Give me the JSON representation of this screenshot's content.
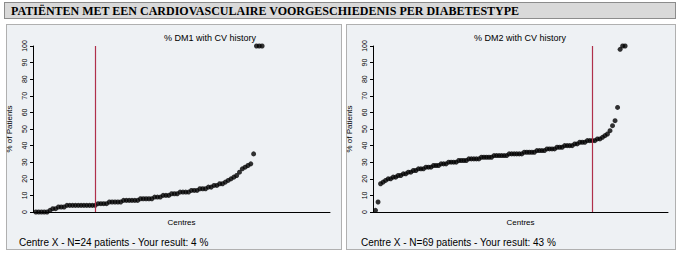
{
  "header": "PATIËNTEN MET EEN CARDIOVASCULAIRE VOORGESCHIEDENIS PER DIABETESTYPE",
  "chart_data": [
    {
      "type": "scatter",
      "title": "% DM1 with CV history",
      "x_label": "Centres",
      "y_label": "% of Patients",
      "caption": "Centre X - N=24 patients - Your result: 4 %",
      "x": [
        1,
        2,
        3,
        4,
        5,
        6,
        7,
        8,
        9,
        10,
        11,
        12,
        13,
        14,
        15,
        16,
        17,
        18,
        19,
        20,
        21,
        22,
        23,
        24,
        25,
        26,
        27,
        28,
        29,
        30,
        31,
        32,
        33,
        34,
        35,
        36,
        37,
        38,
        39,
        40,
        41,
        42,
        43,
        44,
        45,
        46,
        47,
        48,
        49,
        50,
        51,
        52,
        53,
        54,
        55,
        56,
        57,
        58,
        59,
        60,
        61,
        62,
        63,
        64,
        65,
        66,
        67,
        68,
        69,
        70,
        71,
        72,
        73,
        74,
        75,
        76,
        77,
        78,
        79,
        80,
        81
      ],
      "values": [
        0,
        0,
        0,
        0,
        0,
        1,
        2,
        2,
        3,
        3,
        3,
        4,
        4,
        4,
        4,
        4,
        4,
        4,
        4,
        4,
        4,
        4,
        5,
        5,
        5,
        5,
        6,
        6,
        6,
        6,
        6,
        7,
        7,
        7,
        7,
        7,
        7,
        8,
        8,
        8,
        8,
        8,
        9,
        9,
        9,
        10,
        10,
        10,
        11,
        11,
        11,
        12,
        12,
        12,
        12,
        13,
        13,
        13,
        14,
        14,
        14,
        15,
        15,
        16,
        16,
        17,
        17,
        18,
        19,
        20,
        21,
        22,
        24,
        26,
        27,
        28,
        29,
        35,
        100,
        100,
        100
      ],
      "reference_x": 22,
      "color": "#000000",
      "xlim": [
        0,
        105
      ],
      "ylim": [
        0,
        100
      ],
      "yticks": [
        0,
        10,
        20,
        30,
        40,
        50,
        60,
        70,
        80,
        90,
        100
      ],
      "tick_labels": "y",
      "grid": false,
      "marker": "circle"
    },
    {
      "type": "scatter",
      "title": "% DM2 with CV history",
      "x_label": "Centres",
      "y_label": "% of Patients",
      "caption": "Centre X - N=69 patients - Your result: 43 %",
      "x": [
        1,
        2,
        3,
        4,
        5,
        6,
        7,
        8,
        9,
        10,
        11,
        12,
        13,
        14,
        15,
        16,
        17,
        18,
        19,
        20,
        21,
        22,
        23,
        24,
        25,
        26,
        27,
        28,
        29,
        30,
        31,
        32,
        33,
        34,
        35,
        36,
        37,
        38,
        39,
        40,
        41,
        42,
        43,
        44,
        45,
        46,
        47,
        48,
        49,
        50,
        51,
        52,
        53,
        54,
        55,
        56,
        57,
        58,
        59,
        60,
        61,
        62,
        63,
        64,
        65,
        66,
        67,
        68,
        69,
        70,
        71,
        72,
        73,
        74,
        75,
        76,
        77,
        78,
        79,
        80,
        81,
        82,
        83,
        84,
        85,
        86,
        87,
        88,
        89,
        90,
        91,
        92,
        93,
        94,
        95,
        96,
        97,
        98,
        99,
        100
      ],
      "values": [
        1,
        6,
        17,
        18,
        19,
        20,
        20,
        21,
        21,
        22,
        22,
        23,
        23,
        24,
        24,
        25,
        25,
        26,
        26,
        26,
        27,
        27,
        27,
        28,
        28,
        28,
        29,
        29,
        29,
        30,
        30,
        30,
        30,
        31,
        31,
        31,
        31,
        32,
        32,
        32,
        32,
        32,
        33,
        33,
        33,
        33,
        33,
        34,
        34,
        34,
        34,
        34,
        34,
        35,
        35,
        35,
        35,
        35,
        35,
        36,
        36,
        36,
        36,
        36,
        37,
        37,
        37,
        37,
        38,
        38,
        38,
        38,
        39,
        39,
        39,
        40,
        40,
        40,
        40,
        41,
        41,
        42,
        42,
        42,
        43,
        43,
        43,
        43,
        44,
        44,
        45,
        46,
        47,
        49,
        52,
        55,
        63,
        98,
        100,
        100
      ],
      "reference_x": 87,
      "color": "#000000",
      "xlim": [
        0,
        117
      ],
      "ylim": [
        0,
        100
      ],
      "yticks": [
        0,
        10,
        20,
        30,
        40,
        50,
        60,
        70,
        80,
        90,
        100
      ],
      "tick_labels": "y",
      "grid": false,
      "marker": "circle"
    }
  ]
}
